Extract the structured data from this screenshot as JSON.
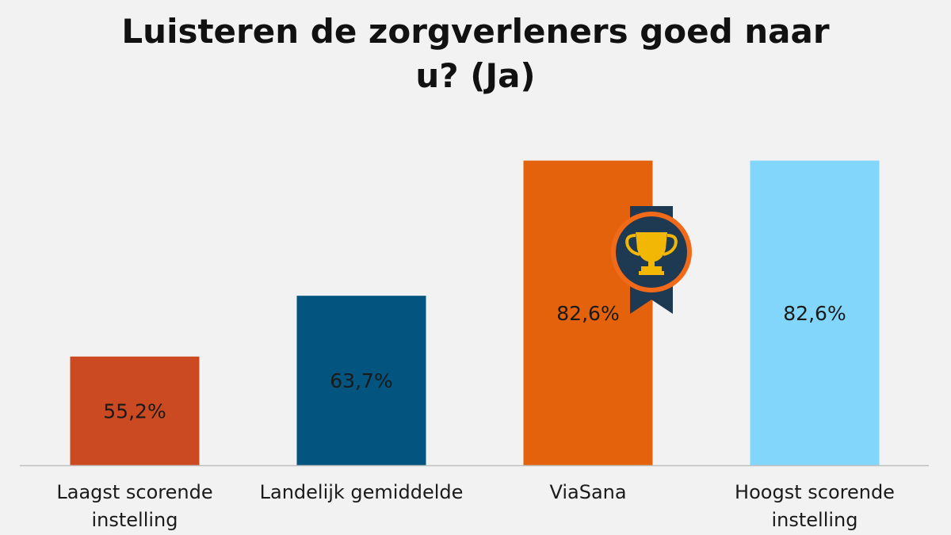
{
  "chart_data": {
    "type": "bar",
    "title_lines": [
      "Luisteren de zorgverleners goed naar",
      "u? (Ja)"
    ],
    "categories": [
      [
        "Laagst scorende",
        "instelling"
      ],
      [
        "Landelijk gemiddelde"
      ],
      [
        "ViaSana"
      ],
      [
        "Hoogst scorende",
        "instelling"
      ]
    ],
    "values": [
      55.2,
      63.7,
      82.6,
      82.6
    ],
    "value_labels": [
      "55,2%",
      "63,7%",
      "82,6%",
      "82,6%"
    ],
    "bar_colors": [
      "#cc4a22",
      "#03547f",
      "#e3620b",
      "#82d6fb"
    ],
    "ylim": [
      40,
      84
    ],
    "grid": false,
    "legend": "none",
    "annotations": [
      {
        "type": "trophy-ribbon-badge",
        "category_index": 2
      }
    ]
  },
  "colors": {
    "background": "#f2f2f2",
    "axis": "#bfbfbf",
    "badge_ring": "#f06a1a",
    "badge_fill": "#1e3a52",
    "trophy": "#f2b705"
  }
}
